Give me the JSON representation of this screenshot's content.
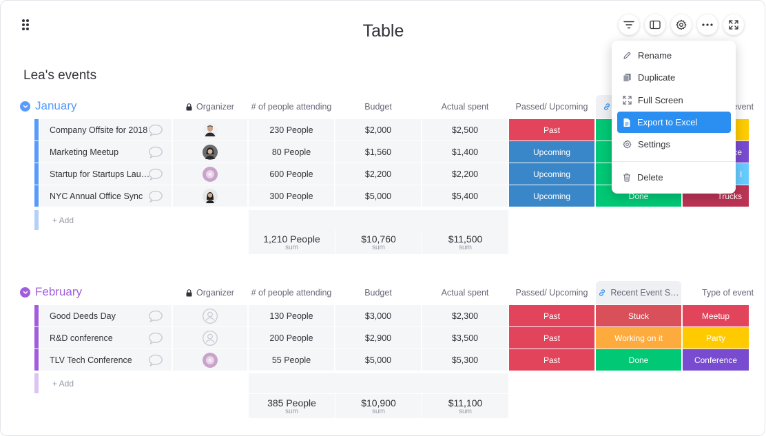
{
  "page": {
    "title": "Table",
    "board_name": "Lea's events"
  },
  "icons": {
    "drag": "drag-handle-icon",
    "filter": "filter-icon",
    "panel": "side-panel-icon",
    "settings": "gear-icon",
    "more": "more-dots-icon",
    "fullscreen": "fullscreen-icon",
    "lock": "lock-icon",
    "link": "link-icon",
    "comment": "comment-bubble-icon",
    "rename": "pencil-icon",
    "duplicate": "copy-icon",
    "export": "document-icon",
    "delete": "trash-icon"
  },
  "colors": {
    "january": "#579bfc",
    "february": "#a25ddc",
    "pink": "#e2445c",
    "blue": "#3986c8",
    "green": "#00c875",
    "red": "#e2445c",
    "orange": "#fdab3d",
    "yellow": "#ffcb00",
    "purple": "#784bd1",
    "stuck": "#d9505b",
    "trucks": "#bb3354",
    "menu_active": "#2b8ff2"
  },
  "columns": [
    "Organizer",
    "# of people attending",
    "Budget",
    "Actual spent",
    "Passed/ Upcoming",
    "Recent Event S…",
    "Type of event"
  ],
  "groups": [
    {
      "title": "January",
      "rows": [
        {
          "name": "Company Offsite for 2018",
          "organizer": "person-a",
          "people": "230 People",
          "budget": "$2,000",
          "spent": "$2,500",
          "status": "Past",
          "recent": "",
          "type": ""
        },
        {
          "name": "Marketing Meetup",
          "organizer": "person-b",
          "people": "80 People",
          "budget": "$1,560",
          "spent": "$1,400",
          "status": "Upcoming",
          "recent": "",
          "type": "ce"
        },
        {
          "name": "Startup for Startups Lau…",
          "organizer": "person-c",
          "people": "600 People",
          "budget": "$2,200",
          "spent": "$2,200",
          "status": "Upcoming",
          "recent": "",
          "type": "l"
        },
        {
          "name": "NYC Annual Office Sync",
          "organizer": "person-d",
          "people": "300 People",
          "budget": "$5,000",
          "spent": "$5,400",
          "status": "Upcoming",
          "recent": "Done",
          "type": "Trucks"
        }
      ],
      "add_label": "+ Add",
      "sums": {
        "people": "1,210 People",
        "budget": "$10,760",
        "spent": "$11,500",
        "label": "sum"
      }
    },
    {
      "title": "February",
      "rows": [
        {
          "name": "Good Deeds Day",
          "organizer": "empty",
          "people": "130 People",
          "budget": "$3,000",
          "spent": "$2,300",
          "status": "Past",
          "recent": "Stuck",
          "type": "Meetup"
        },
        {
          "name": "R&D conference",
          "organizer": "empty",
          "people": "200 People",
          "budget": "$2,900",
          "spent": "$3,500",
          "status": "Past",
          "recent": "Working on it",
          "type": "Party"
        },
        {
          "name": "TLV Tech Conference",
          "organizer": "person-c",
          "people": "55 People",
          "budget": "$5,000",
          "spent": "$5,300",
          "status": "Past",
          "recent": "Done",
          "type": "Conference"
        }
      ],
      "add_label": "+ Add",
      "sums": {
        "people": "385 People",
        "budget": "$10,900",
        "spent": "$11,100",
        "label": "sum"
      }
    }
  ],
  "menu": {
    "items": [
      "Rename",
      "Duplicate",
      "Full Screen",
      "Export to Excel",
      "Settings",
      "Delete"
    ],
    "active": "Export to Excel"
  }
}
